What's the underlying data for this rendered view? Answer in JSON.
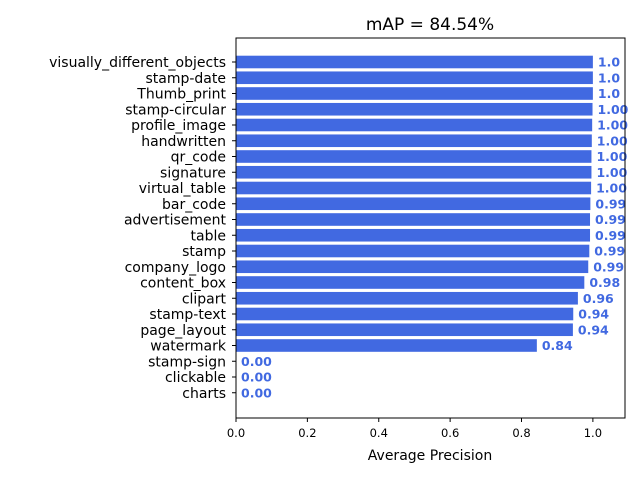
{
  "chart_data": {
    "type": "bar",
    "orientation": "horizontal",
    "title": "mAP = 84.54%",
    "xlabel": "Average Precision",
    "ylabel": "",
    "xlim": [
      0,
      1.09
    ],
    "xticks": [
      "0.0",
      "0.2",
      "0.4",
      "0.6",
      "0.8",
      "1.0"
    ],
    "bar_color": "#4169e1",
    "label_color": "#4169e1",
    "grid": false,
    "categories": [
      "visually_different_objects",
      "stamp-date",
      "Thumb_print",
      "stamp-circular",
      "profile_image",
      "handwritten",
      "qr_code",
      "signature",
      "virtual_table",
      "bar_code",
      "advertisement",
      "table",
      "stamp",
      "company_logo",
      "content_box",
      "clipart",
      "stamp-text",
      "page_layout",
      "watermark",
      "stamp-sign",
      "clickable",
      "charts"
    ],
    "values": [
      1.0,
      1.0,
      1.0,
      0.999,
      0.998,
      0.997,
      0.996,
      0.996,
      0.995,
      0.993,
      0.992,
      0.992,
      0.99,
      0.987,
      0.976,
      0.958,
      0.945,
      0.944,
      0.843,
      0.0,
      0.0,
      0.0
    ],
    "value_labels": [
      "1.0",
      "1.0",
      "1.0",
      "1.00",
      "1.00",
      "1.00",
      "1.00",
      "1.00",
      "1.00",
      "0.99",
      "0.99",
      "0.99",
      "0.99",
      "0.99",
      "0.98",
      "0.96",
      "0.94",
      "0.94",
      "0.84",
      "0.00",
      "0.00",
      "0.00"
    ]
  }
}
